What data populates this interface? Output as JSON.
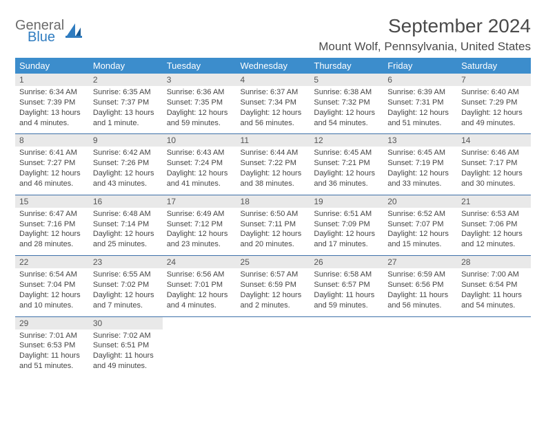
{
  "logo": {
    "word1": "General",
    "word2": "Blue",
    "icon_color": "#2f7cc0",
    "text_gray": "#6b6b6b"
  },
  "title": "September 2024",
  "location": "Mount Wolf, Pennsylvania, United States",
  "colors": {
    "header_bg": "#3c8dcc",
    "header_text": "#ffffff",
    "daynum_bg": "#e9e9e9",
    "week_divider": "#3c6fa8",
    "body_text": "#444444"
  },
  "day_headers": [
    "Sunday",
    "Monday",
    "Tuesday",
    "Wednesday",
    "Thursday",
    "Friday",
    "Saturday"
  ],
  "weeks": [
    [
      {
        "n": "1",
        "sr": "Sunrise: 6:34 AM",
        "ss": "Sunset: 7:39 PM",
        "d1": "Daylight: 13 hours",
        "d2": "and 4 minutes."
      },
      {
        "n": "2",
        "sr": "Sunrise: 6:35 AM",
        "ss": "Sunset: 7:37 PM",
        "d1": "Daylight: 13 hours",
        "d2": "and 1 minute."
      },
      {
        "n": "3",
        "sr": "Sunrise: 6:36 AM",
        "ss": "Sunset: 7:35 PM",
        "d1": "Daylight: 12 hours",
        "d2": "and 59 minutes."
      },
      {
        "n": "4",
        "sr": "Sunrise: 6:37 AM",
        "ss": "Sunset: 7:34 PM",
        "d1": "Daylight: 12 hours",
        "d2": "and 56 minutes."
      },
      {
        "n": "5",
        "sr": "Sunrise: 6:38 AM",
        "ss": "Sunset: 7:32 PM",
        "d1": "Daylight: 12 hours",
        "d2": "and 54 minutes."
      },
      {
        "n": "6",
        "sr": "Sunrise: 6:39 AM",
        "ss": "Sunset: 7:31 PM",
        "d1": "Daylight: 12 hours",
        "d2": "and 51 minutes."
      },
      {
        "n": "7",
        "sr": "Sunrise: 6:40 AM",
        "ss": "Sunset: 7:29 PM",
        "d1": "Daylight: 12 hours",
        "d2": "and 49 minutes."
      }
    ],
    [
      {
        "n": "8",
        "sr": "Sunrise: 6:41 AM",
        "ss": "Sunset: 7:27 PM",
        "d1": "Daylight: 12 hours",
        "d2": "and 46 minutes."
      },
      {
        "n": "9",
        "sr": "Sunrise: 6:42 AM",
        "ss": "Sunset: 7:26 PM",
        "d1": "Daylight: 12 hours",
        "d2": "and 43 minutes."
      },
      {
        "n": "10",
        "sr": "Sunrise: 6:43 AM",
        "ss": "Sunset: 7:24 PM",
        "d1": "Daylight: 12 hours",
        "d2": "and 41 minutes."
      },
      {
        "n": "11",
        "sr": "Sunrise: 6:44 AM",
        "ss": "Sunset: 7:22 PM",
        "d1": "Daylight: 12 hours",
        "d2": "and 38 minutes."
      },
      {
        "n": "12",
        "sr": "Sunrise: 6:45 AM",
        "ss": "Sunset: 7:21 PM",
        "d1": "Daylight: 12 hours",
        "d2": "and 36 minutes."
      },
      {
        "n": "13",
        "sr": "Sunrise: 6:45 AM",
        "ss": "Sunset: 7:19 PM",
        "d1": "Daylight: 12 hours",
        "d2": "and 33 minutes."
      },
      {
        "n": "14",
        "sr": "Sunrise: 6:46 AM",
        "ss": "Sunset: 7:17 PM",
        "d1": "Daylight: 12 hours",
        "d2": "and 30 minutes."
      }
    ],
    [
      {
        "n": "15",
        "sr": "Sunrise: 6:47 AM",
        "ss": "Sunset: 7:16 PM",
        "d1": "Daylight: 12 hours",
        "d2": "and 28 minutes."
      },
      {
        "n": "16",
        "sr": "Sunrise: 6:48 AM",
        "ss": "Sunset: 7:14 PM",
        "d1": "Daylight: 12 hours",
        "d2": "and 25 minutes."
      },
      {
        "n": "17",
        "sr": "Sunrise: 6:49 AM",
        "ss": "Sunset: 7:12 PM",
        "d1": "Daylight: 12 hours",
        "d2": "and 23 minutes."
      },
      {
        "n": "18",
        "sr": "Sunrise: 6:50 AM",
        "ss": "Sunset: 7:11 PM",
        "d1": "Daylight: 12 hours",
        "d2": "and 20 minutes."
      },
      {
        "n": "19",
        "sr": "Sunrise: 6:51 AM",
        "ss": "Sunset: 7:09 PM",
        "d1": "Daylight: 12 hours",
        "d2": "and 17 minutes."
      },
      {
        "n": "20",
        "sr": "Sunrise: 6:52 AM",
        "ss": "Sunset: 7:07 PM",
        "d1": "Daylight: 12 hours",
        "d2": "and 15 minutes."
      },
      {
        "n": "21",
        "sr": "Sunrise: 6:53 AM",
        "ss": "Sunset: 7:06 PM",
        "d1": "Daylight: 12 hours",
        "d2": "and 12 minutes."
      }
    ],
    [
      {
        "n": "22",
        "sr": "Sunrise: 6:54 AM",
        "ss": "Sunset: 7:04 PM",
        "d1": "Daylight: 12 hours",
        "d2": "and 10 minutes."
      },
      {
        "n": "23",
        "sr": "Sunrise: 6:55 AM",
        "ss": "Sunset: 7:02 PM",
        "d1": "Daylight: 12 hours",
        "d2": "and 7 minutes."
      },
      {
        "n": "24",
        "sr": "Sunrise: 6:56 AM",
        "ss": "Sunset: 7:01 PM",
        "d1": "Daylight: 12 hours",
        "d2": "and 4 minutes."
      },
      {
        "n": "25",
        "sr": "Sunrise: 6:57 AM",
        "ss": "Sunset: 6:59 PM",
        "d1": "Daylight: 12 hours",
        "d2": "and 2 minutes."
      },
      {
        "n": "26",
        "sr": "Sunrise: 6:58 AM",
        "ss": "Sunset: 6:57 PM",
        "d1": "Daylight: 11 hours",
        "d2": "and 59 minutes."
      },
      {
        "n": "27",
        "sr": "Sunrise: 6:59 AM",
        "ss": "Sunset: 6:56 PM",
        "d1": "Daylight: 11 hours",
        "d2": "and 56 minutes."
      },
      {
        "n": "28",
        "sr": "Sunrise: 7:00 AM",
        "ss": "Sunset: 6:54 PM",
        "d1": "Daylight: 11 hours",
        "d2": "and 54 minutes."
      }
    ],
    [
      {
        "n": "29",
        "sr": "Sunrise: 7:01 AM",
        "ss": "Sunset: 6:53 PM",
        "d1": "Daylight: 11 hours",
        "d2": "and 51 minutes."
      },
      {
        "n": "30",
        "sr": "Sunrise: 7:02 AM",
        "ss": "Sunset: 6:51 PM",
        "d1": "Daylight: 11 hours",
        "d2": "and 49 minutes."
      },
      null,
      null,
      null,
      null,
      null
    ]
  ]
}
